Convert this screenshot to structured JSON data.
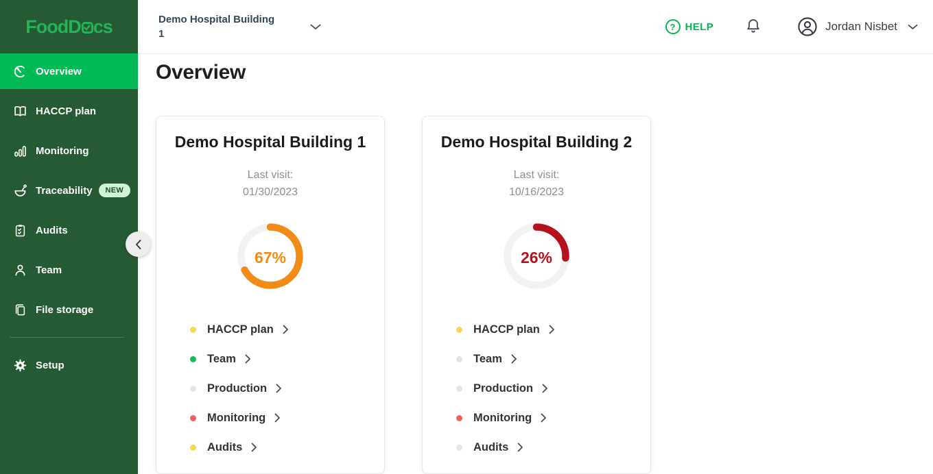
{
  "logo": {
    "prefix": "FoodD",
    "suffix": "cs",
    "alt": "FoodDocs"
  },
  "colors": {
    "sidebar_bg": "#255A34",
    "active_green": "#00BA55",
    "logo_green": "#23B45A",
    "help_green": "#0CB257",
    "donut_track": "#F2F2F2",
    "dot_yellow": "#F7D74E",
    "dot_green": "#0EBC5C",
    "dot_gray": "#E4E4E4",
    "dot_red": "#F2605C"
  },
  "sidebar": {
    "items": [
      {
        "label": "Overview",
        "icon": "gauge-icon",
        "active": true
      },
      {
        "label": "HACCP plan",
        "icon": "book-icon"
      },
      {
        "label": "Monitoring",
        "icon": "chart-icon"
      },
      {
        "label": "Traceability",
        "icon": "bowl-icon",
        "badge": "NEW"
      },
      {
        "label": "Audits",
        "icon": "clipboard-icon"
      },
      {
        "label": "Team",
        "icon": "person-icon"
      },
      {
        "label": "File storage",
        "icon": "files-icon"
      },
      {
        "label": "Setup",
        "icon": "gear-icon",
        "divider_before": true
      }
    ]
  },
  "header": {
    "workspace": {
      "line1": "Demo Hospital Building",
      "line2": "1"
    },
    "help_icon_glyph": "?",
    "help_label": "HELP",
    "user_name": "Jordan Nisbet"
  },
  "page": {
    "title": "Overview"
  },
  "cards": [
    {
      "title": "Demo Hospital Building 1",
      "last_visit_label": "Last visit:",
      "last_visit_date": "01/30/2023",
      "percent": 67,
      "percent_label": "67%",
      "ring_color": "#F08C17",
      "items": [
        {
          "label": "HACCP plan",
          "dot_color": "#F7D74E"
        },
        {
          "label": "Team",
          "dot_color": "#0EBC5C"
        },
        {
          "label": "Production",
          "dot_color": "#E4E4E4"
        },
        {
          "label": "Monitoring",
          "dot_color": "#F2605C"
        },
        {
          "label": "Audits",
          "dot_color": "#F7D74E"
        }
      ]
    },
    {
      "title": "Demo Hospital Building 2",
      "last_visit_label": "Last visit:",
      "last_visit_date": "10/16/2023",
      "percent": 26,
      "percent_label": "26%",
      "ring_color": "#B5121B",
      "items": [
        {
          "label": "HACCP plan",
          "dot_color": "#F7D74E"
        },
        {
          "label": "Team",
          "dot_color": "#E4E4E4"
        },
        {
          "label": "Production",
          "dot_color": "#E4E4E4"
        },
        {
          "label": "Monitoring",
          "dot_color": "#F2605C"
        },
        {
          "label": "Audits",
          "dot_color": "#E4E4E4"
        }
      ]
    }
  ]
}
